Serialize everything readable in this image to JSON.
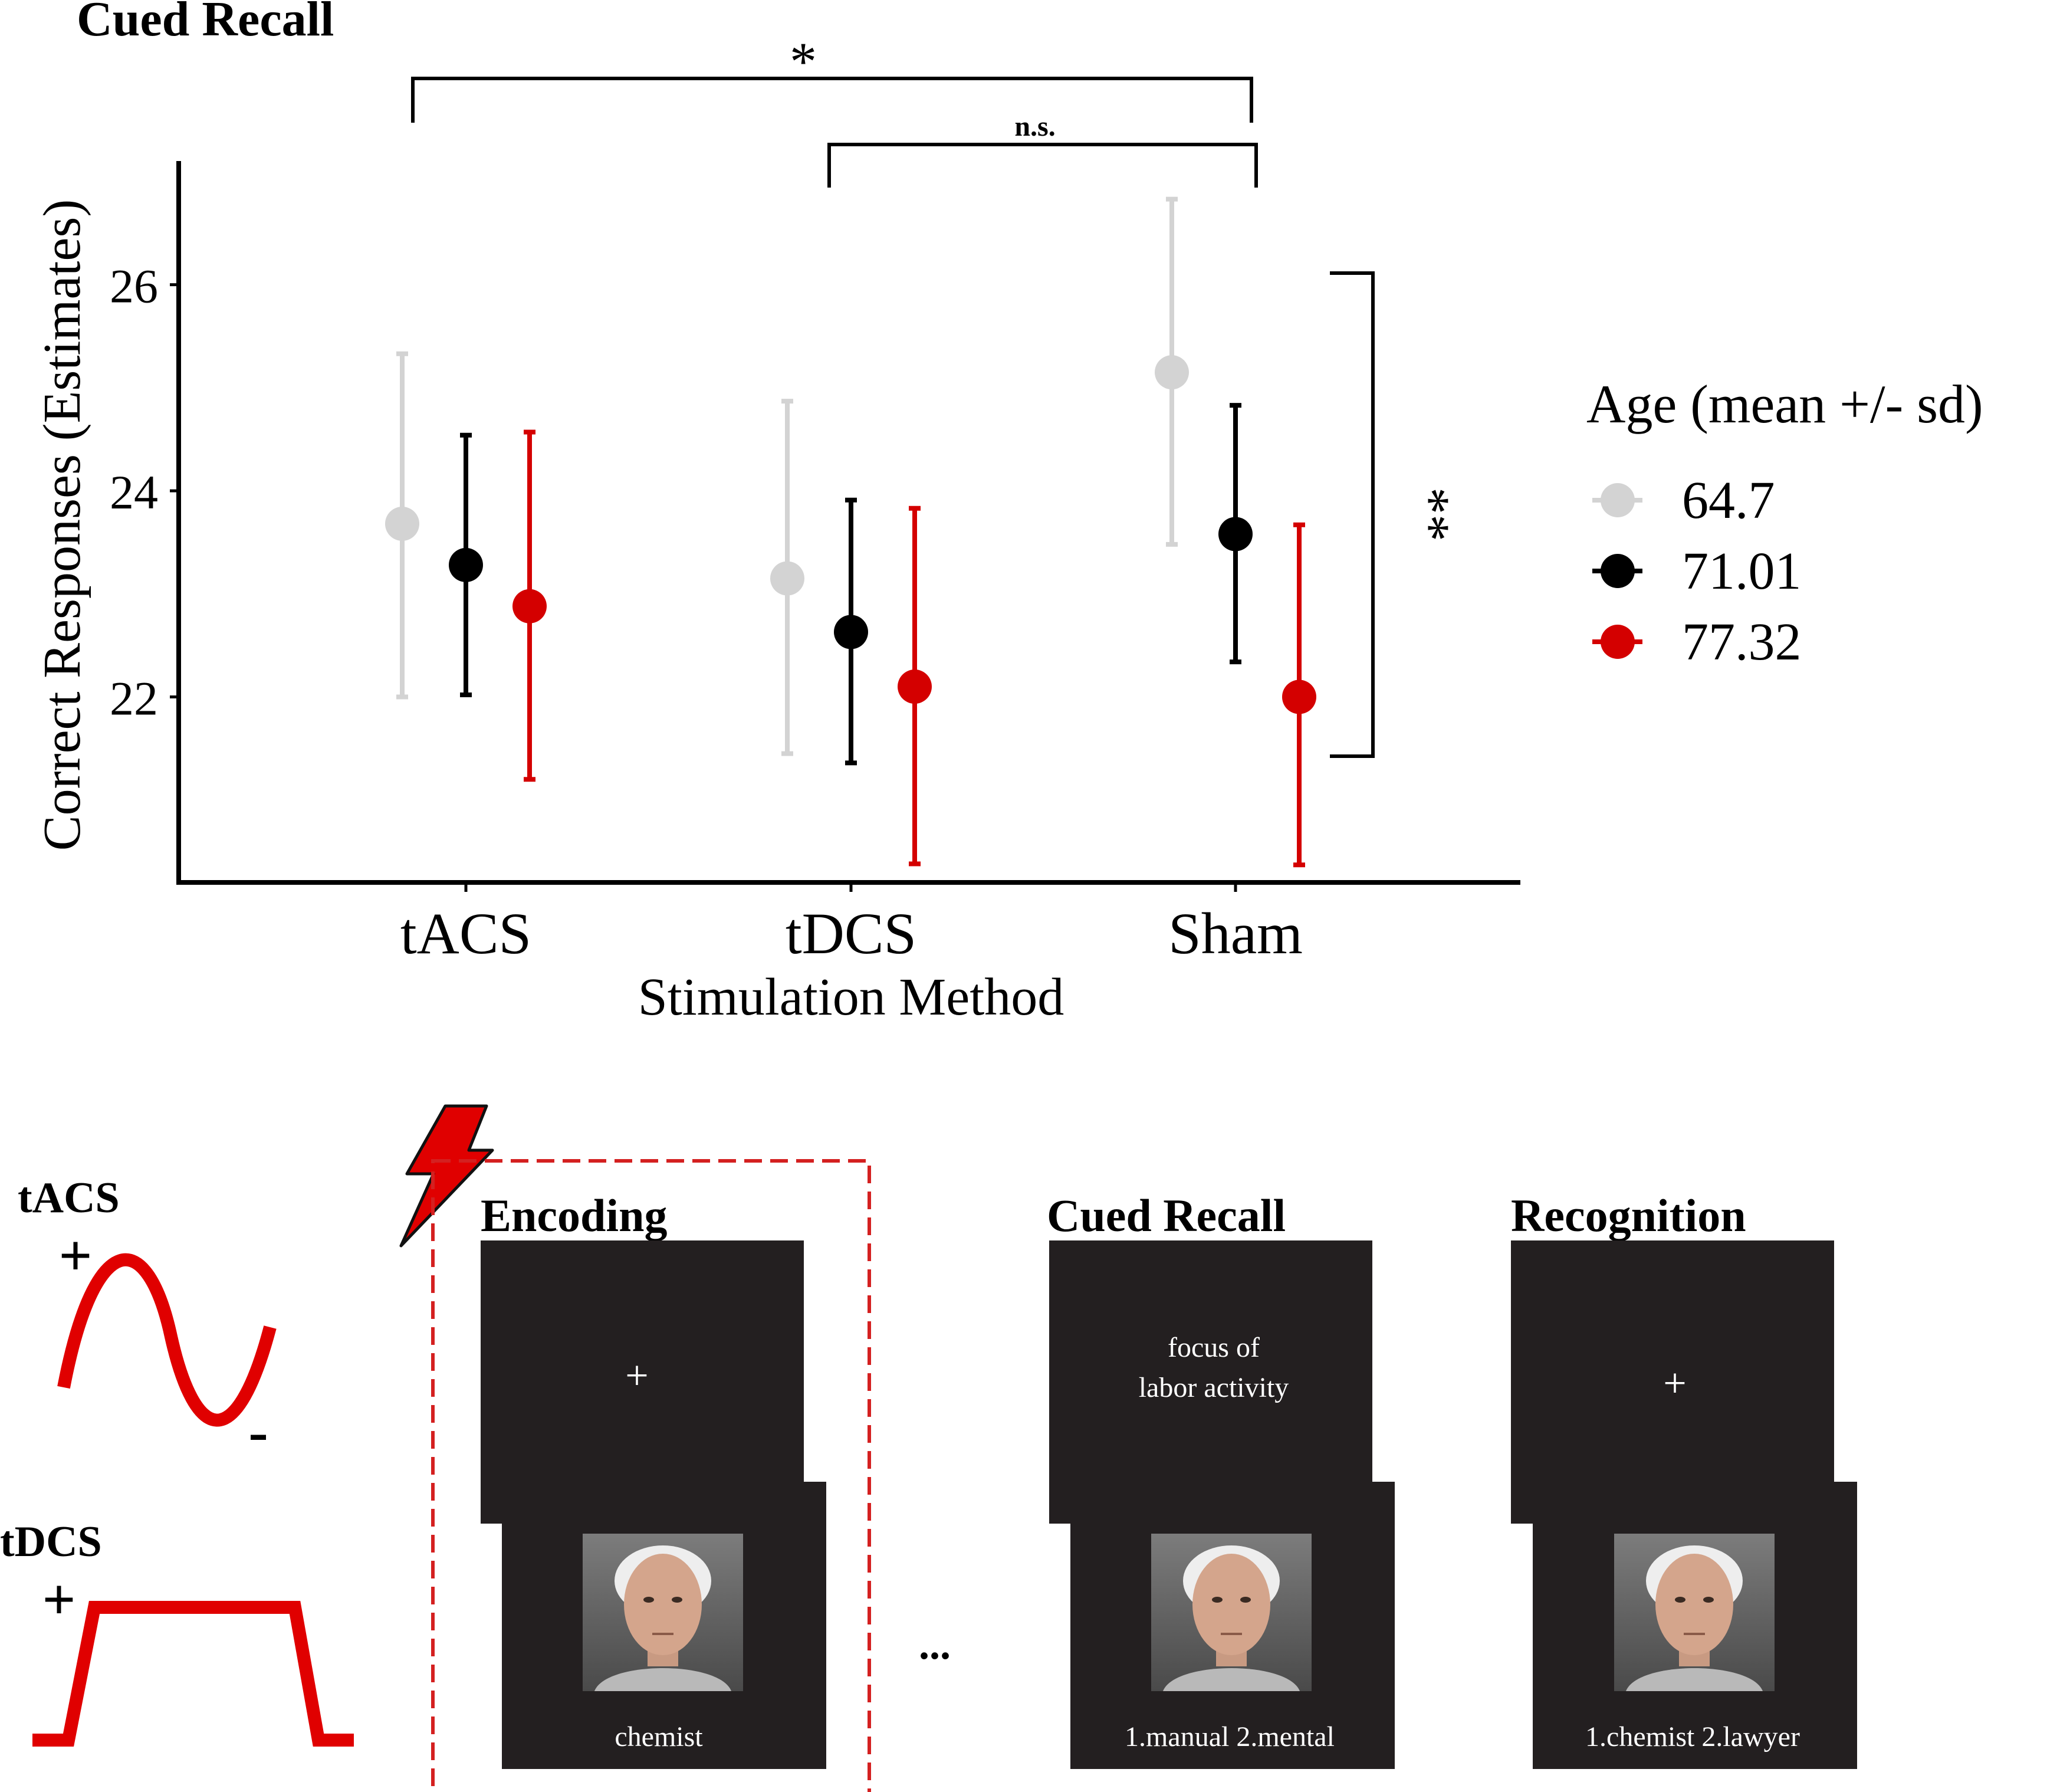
{
  "chart_data": {
    "type": "scatter",
    "title": "Cued Recall",
    "xlabel": "Stimulation Method",
    "ylabel": "Correct Responses (Estimates)",
    "categories": [
      "tACS",
      "tDCS",
      "Sham"
    ],
    "yticks": [
      22,
      24,
      26
    ],
    "ylim": [
      20.2,
      27.2
    ],
    "grid": false,
    "legend": {
      "title": "Age (mean +/- sd)",
      "position": "right"
    },
    "series": [
      {
        "name": "64.7",
        "color": "#d3d3d3",
        "values": [
          23.68,
          23.15,
          25.15
        ],
        "lower": [
          22.0,
          21.45,
          23.48
        ],
        "upper": [
          25.33,
          24.87,
          26.83
        ]
      },
      {
        "name": "71.01",
        "color": "#000000",
        "values": [
          23.28,
          22.63,
          23.58
        ],
        "lower": [
          22.02,
          21.36,
          22.34
        ],
        "upper": [
          24.54,
          23.91,
          24.83
        ]
      },
      {
        "name": "77.32",
        "color": "#d40000",
        "values": [
          22.88,
          22.1,
          22.0
        ],
        "lower": [
          21.2,
          20.38,
          20.37
        ],
        "upper": [
          24.57,
          23.83,
          23.67
        ]
      }
    ],
    "annotations": {
      "bracket_top": "*",
      "bracket_middle": "n.s.",
      "bracket_side": "**"
    }
  },
  "diagram": {
    "tacs_label": "tACS",
    "tdcs_label": "tDCS",
    "plus_sign": "+",
    "minus_sign": "-",
    "encoding_label": "Encoding",
    "cued_recall_label": "Cued Recall",
    "recognition_label": "Recognition",
    "fixation": "+",
    "ellipsis": "...",
    "cue_line1": "focus of",
    "cue_line2": "labor activity",
    "encoding_word": "chemist",
    "cued_options": "1.manual  2.mental",
    "recognition_options": "1.chemist  2.lawyer",
    "accent_color": "#e00000",
    "screen_color": "#231f20"
  }
}
